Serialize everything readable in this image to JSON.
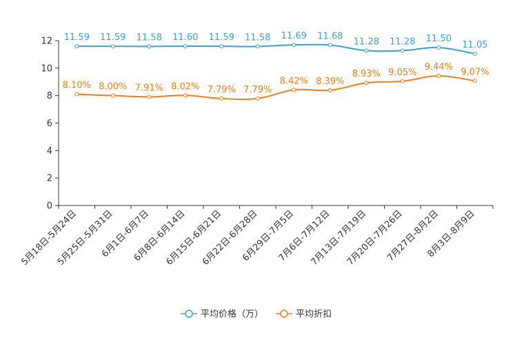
{
  "chart_data": {
    "type": "line",
    "title": "",
    "xlabel": "",
    "ylabel": "",
    "ylim": [
      0,
      12
    ],
    "yticks": [
      "0",
      "2",
      "4",
      "6",
      "8",
      "10",
      "12"
    ],
    "categories": [
      "5月18日-5月24日",
      "5月25日-5月31日",
      "6月1日-6月7日",
      "6月8日-6月14日",
      "6月15日-6月21日",
      "6月22日-6月28日",
      "6月29日-7月5日",
      "7月6日-7月12日",
      "7月13日-7月19日",
      "7月20日-7月26日",
      "7月27日-8月2日",
      "8月3日-8月9日"
    ],
    "series": [
      {
        "name": "平均价格（万）",
        "color": "#3b9ecc",
        "values": [
          11.59,
          11.59,
          11.58,
          11.6,
          11.59,
          11.58,
          11.69,
          11.68,
          11.28,
          11.28,
          11.5,
          11.05
        ],
        "labels": [
          "11.59",
          "11.59",
          "11.58",
          "11.60",
          "11.59",
          "11.58",
          "11.69",
          "11.68",
          "11.28",
          "11.28",
          "11.50",
          "11.05"
        ]
      },
      {
        "name": "平均折扣",
        "color": "#f07d1a",
        "values": [
          8.1,
          8.0,
          7.91,
          8.02,
          7.79,
          7.79,
          8.42,
          8.39,
          8.93,
          9.05,
          9.44,
          9.07
        ],
        "labels": [
          "8.10%",
          "8.00%",
          "7.91%",
          "8.02%",
          "7.79%",
          "7.79%",
          "8.42%",
          "8.39%",
          "8.93%",
          "9.05%",
          "9.44%",
          "9.07%"
        ]
      }
    ],
    "legend_position": "bottom-center",
    "grid": false
  }
}
